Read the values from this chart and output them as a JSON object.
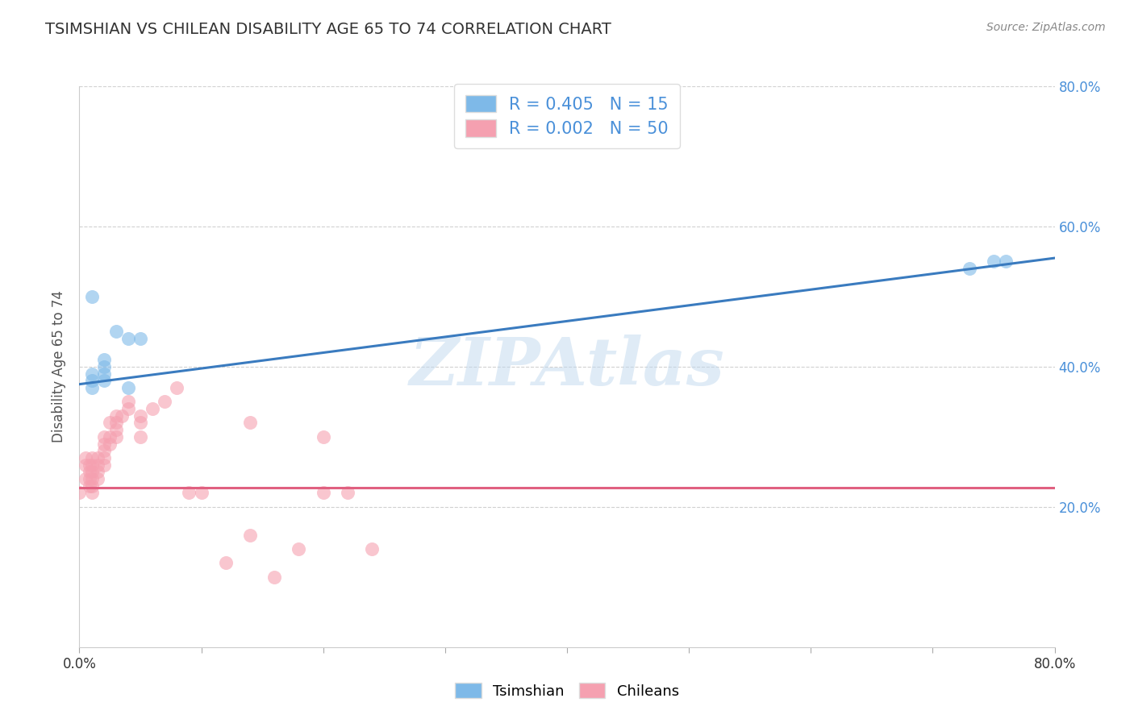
{
  "title": "TSIMSHIAN VS CHILEAN DISABILITY AGE 65 TO 74 CORRELATION CHART",
  "source": "Source: ZipAtlas.com",
  "ylabel": "Disability Age 65 to 74",
  "xlim": [
    0.0,
    0.8
  ],
  "ylim": [
    0.0,
    0.8
  ],
  "tsimshian_x": [
    0.01,
    0.01,
    0.01,
    0.01,
    0.02,
    0.02,
    0.02,
    0.02,
    0.03,
    0.04,
    0.04,
    0.05,
    0.73,
    0.75,
    0.76
  ],
  "tsimshian_y": [
    0.5,
    0.39,
    0.38,
    0.37,
    0.41,
    0.4,
    0.39,
    0.38,
    0.45,
    0.44,
    0.37,
    0.44,
    0.54,
    0.55,
    0.55
  ],
  "chilean_x": [
    0.0,
    0.005,
    0.005,
    0.005,
    0.008,
    0.008,
    0.008,
    0.008,
    0.01,
    0.01,
    0.01,
    0.01,
    0.01,
    0.01,
    0.015,
    0.015,
    0.015,
    0.015,
    0.02,
    0.02,
    0.02,
    0.02,
    0.02,
    0.025,
    0.025,
    0.025,
    0.03,
    0.03,
    0.03,
    0.03,
    0.035,
    0.04,
    0.04,
    0.05,
    0.05,
    0.05,
    0.06,
    0.07,
    0.08,
    0.09,
    0.1,
    0.12,
    0.14,
    0.14,
    0.16,
    0.18,
    0.2,
    0.2,
    0.22,
    0.24
  ],
  "chilean_y": [
    0.22,
    0.27,
    0.26,
    0.24,
    0.26,
    0.25,
    0.24,
    0.23,
    0.27,
    0.26,
    0.25,
    0.24,
    0.23,
    0.22,
    0.27,
    0.26,
    0.25,
    0.24,
    0.3,
    0.29,
    0.28,
    0.27,
    0.26,
    0.32,
    0.3,
    0.29,
    0.33,
    0.32,
    0.31,
    0.3,
    0.33,
    0.35,
    0.34,
    0.33,
    0.32,
    0.3,
    0.34,
    0.35,
    0.37,
    0.22,
    0.22,
    0.12,
    0.32,
    0.16,
    0.1,
    0.14,
    0.3,
    0.22,
    0.22,
    0.14
  ],
  "tsimshian_color": "#7eb9e8",
  "chilean_color": "#f5a0b0",
  "tsimshian_line_color": "#3a7bbf",
  "chilean_line_color": "#e06080",
  "R_tsimshian": 0.405,
  "N_tsimshian": 15,
  "R_chilean": 0.002,
  "N_chilean": 50,
  "legend_labels": [
    "Tsimshian",
    "Chileans"
  ],
  "watermark": "ZIPAtlas",
  "bg_color": "#ffffff",
  "grid_color": "#cccccc",
  "title_color": "#333333",
  "axis_label_color": "#555555",
  "right_tick_color": "#4a90d9",
  "bottom_tick_color": "#333333"
}
